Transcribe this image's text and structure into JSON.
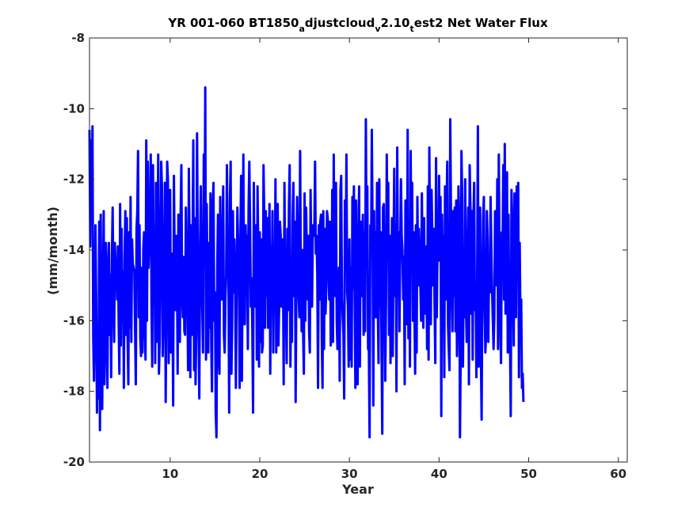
{
  "chart_data": {
    "type": "line",
    "title_parts": {
      "prefix": "YR 001-060 BT1850",
      "sub1": "a",
      "mid1": "djustcloud",
      "sub2": "v",
      "mid2": "2.10",
      "sub3": "t",
      "suffix": "est2 Net Water Flux"
    },
    "xlabel": "Year",
    "ylabel": "(mm/month)",
    "xlim": [
      1,
      61
    ],
    "ylim": [
      -20,
      -8
    ],
    "xticks": [
      10,
      20,
      30,
      40,
      50,
      60
    ],
    "yticks": [
      -20,
      -18,
      -16,
      -14,
      -12,
      -10,
      -8
    ],
    "grid": false,
    "line_color": "#0000ff",
    "series": [
      {
        "x_start": 1,
        "x_step": 0.0833333,
        "values": [
          -10.6,
          -13.9,
          -10.9,
          -12.6,
          -10.5,
          -16.5,
          -17.7,
          -15.8,
          -13.3,
          -15.5,
          -18.6,
          -16.2,
          -18.2,
          -13.2,
          -19.1,
          -13.0,
          -16.9,
          -18.5,
          -15.2,
          -12.9,
          -17.8,
          -16.7,
          -13.8,
          -15.0,
          -17.9,
          -14.8,
          -13.8,
          -16.4,
          -14.7,
          -17.6,
          -14.2,
          -12.8,
          -15.2,
          -16.6,
          -13.8,
          -14.6,
          -14.3,
          -15.4,
          -13.9,
          -15.9,
          -17.5,
          -12.7,
          -16.7,
          -13.4,
          -16.0,
          -14.6,
          -17.9,
          -14.2,
          -12.9,
          -16.4,
          -13.1,
          -16.4,
          -17.8,
          -13.5,
          -16.2,
          -12.5,
          -16.6,
          -13.7,
          -14.4,
          -14.5,
          -14.6,
          -16.2,
          -17.8,
          -13.4,
          -12.9,
          -11.2,
          -15.9,
          -13.3,
          -16.5,
          -17.0,
          -14.5,
          -16.9,
          -14.0,
          -13.5,
          -16.1,
          -17.1,
          -10.9,
          -16.0,
          -11.5,
          -14.5,
          -13.7,
          -13.0,
          -11.3,
          -15.6,
          -17.3,
          -11.6,
          -15.1,
          -13.6,
          -17.2,
          -12.1,
          -16.6,
          -14.6,
          -11.3,
          -17.5,
          -16.6,
          -14.0,
          -11.5,
          -12.2,
          -17.0,
          -15.9,
          -14.2,
          -12.1,
          -18.3,
          -15.1,
          -11.5,
          -12.0,
          -17.2,
          -14.7,
          -12.3,
          -16.9,
          -14.1,
          -14.8,
          -18.4,
          -11.9,
          -14.2,
          -15.7,
          -13.6,
          -14.0,
          -17.5,
          -13.0,
          -16.5,
          -16.6,
          -13.0,
          -11.6,
          -15.3,
          -15.9,
          -14.2,
          -16.3,
          -16.4,
          -12.8,
          -14.2,
          -15.0,
          -17.4,
          -11.7,
          -13.9,
          -17.6,
          -13.3,
          -16.4,
          -13.8,
          -10.9,
          -17.4,
          -13.1,
          -17.8,
          -16.2,
          -10.7,
          -13.9,
          -16.0,
          -18.2,
          -14.3,
          -12.2,
          -14.6,
          -15.7,
          -16.9,
          -11.3,
          -14.4,
          -9.4,
          -17.1,
          -12.7,
          -15.4,
          -16.9,
          -13.8,
          -16.2,
          -12.4,
          -16.6,
          -18.0,
          -12.8,
          -12.1,
          -16.0,
          -15.2,
          -18.6,
          -19.3,
          -14.6,
          -13.0,
          -16.9,
          -17.5,
          -12.5,
          -15.3,
          -15.4,
          -13.9,
          -12.2,
          -16.4,
          -16.9,
          -15.4,
          -14.7,
          -11.6,
          -14.4,
          -14.4,
          -18.6,
          -12.6,
          -11.5,
          -17.5,
          -16.2,
          -12.9,
          -15.2,
          -13.7,
          -15.1,
          -17.9,
          -15.3,
          -12.8,
          -13.8,
          -14.2,
          -17.9,
          -13.8,
          -11.9,
          -17.7,
          -14.5,
          -11.3,
          -16.1,
          -16.1,
          -13.3,
          -14.4,
          -13.6,
          -16.8,
          -12.8,
          -11.5,
          -13.3,
          -15.6,
          -14.8,
          -16.2,
          -18.6,
          -12.1,
          -15.6,
          -15.5,
          -13.3,
          -17.1,
          -12.2,
          -14.1,
          -17.3,
          -13.5,
          -16.6,
          -13.7,
          -16.9,
          -16.7,
          -11.6,
          -13.1,
          -16.2,
          -12.9,
          -15.3,
          -13.1,
          -16.2,
          -14.3,
          -12.7,
          -17.5,
          -13.9,
          -15.2,
          -12.9,
          -16.9,
          -14.7,
          -15.4,
          -12.0,
          -16.9,
          -15.1,
          -12.7,
          -16.7,
          -15.5,
          -13.2,
          -13.6,
          -15.6,
          -13.7,
          -14.3,
          -17.8,
          -12.1,
          -15.0,
          -15.6,
          -17.2,
          -13.4,
          -15.7,
          -12.8,
          -11.6,
          -17.3,
          -15.2,
          -16.6,
          -13.1,
          -12.1,
          -15.3,
          -13.2,
          -18.3,
          -14.9,
          -12.5,
          -13.9,
          -15.3,
          -15.9,
          -11.2,
          -14.7,
          -16.3,
          -14.0,
          -16.3,
          -17.5,
          -12.4,
          -16.0,
          -12.8,
          -14.1,
          -15.4,
          -13.6,
          -16.3,
          -16.9,
          -12.3,
          -14.4,
          -15.6,
          -13.3,
          -13.5,
          -13.6,
          -11.5,
          -14.1,
          -13.6,
          -14.7,
          -17.9,
          -13.3,
          -15.4,
          -13.2,
          -13.0,
          -16.5,
          -17.9,
          -12.9,
          -16.8,
          -13.4,
          -15.8,
          -15.1,
          -12.9,
          -13.1,
          -14.6,
          -15.4,
          -13.2,
          -16.7,
          -16.3,
          -12.3,
          -16.6,
          -11.3,
          -15.3,
          -13.6,
          -12.1,
          -16.0,
          -16.8,
          -15.0,
          -14.5,
          -17.7,
          -12.3,
          -11.9,
          -15.4,
          -15.9,
          -16.4,
          -18.2,
          -12.6,
          -14.5,
          -11.3,
          -15.2,
          -15.6,
          -17.3,
          -13.7,
          -17.1,
          -14.5,
          -17.3,
          -12.5,
          -15.1,
          -12.2,
          -15.3,
          -17.9,
          -12.6,
          -15.2,
          -17.8,
          -14.3,
          -12.2,
          -17.3,
          -13.2,
          -14.3,
          -15.3,
          -13.0,
          -16.4,
          -13.5,
          -16.3,
          -10.3,
          -14.4,
          -12.2,
          -16.8,
          -16.7,
          -19.3,
          -13.3,
          -14.1,
          -10.6,
          -13.6,
          -18.4,
          -12.9,
          -15.9,
          -13.5,
          -15.9,
          -12.1,
          -15.6,
          -17.2,
          -12.0,
          -15.6,
          -13.5,
          -16.7,
          -19.2,
          -12.8,
          -12.7,
          -14.8,
          -17.7,
          -15.5,
          -11.3,
          -14.1,
          -12.1,
          -16.4,
          -13.6,
          -17.2,
          -15.4,
          -13.1,
          -17.0,
          -14.3,
          -11.7,
          -15.3,
          -13.3,
          -18.0,
          -11.1,
          -14.6,
          -13.5,
          -16.3,
          -14.1,
          -12.0,
          -13.6,
          -14.0,
          -15.4,
          -14.2,
          -17.8,
          -12.6,
          -15.2,
          -16.1,
          -10.6,
          -16.5,
          -13.2,
          -17.3,
          -11.2,
          -14.6,
          -12.1,
          -16.0,
          -13.5,
          -15.6,
          -17.5,
          -13.3,
          -16.9,
          -12.5,
          -15.0,
          -13.4,
          -14.1,
          -15.0,
          -16.0,
          -12.4,
          -14.6,
          -16.2,
          -13.1,
          -15.8,
          -15.7,
          -13.9,
          -16.8,
          -12.2,
          -17.1,
          -11.1,
          -13.9,
          -16.1,
          -12.3,
          -13.6,
          -15.0,
          -13.4,
          -15.5,
          -17.2,
          -11.4,
          -15.9,
          -13.9,
          -14.3,
          -11.9,
          -14.3,
          -12.5,
          -18.7,
          -13.0,
          -14.7,
          -13.6,
          -17.6,
          -12.2,
          -15.4,
          -13.0,
          -11.5,
          -16.1,
          -16.8,
          -17.4,
          -10.3,
          -13.0,
          -15.0,
          -16.3,
          -12.9,
          -15.3,
          -12.8,
          -16.3,
          -12.6,
          -17.0,
          -15.6,
          -12.2,
          -13.3,
          -19.3,
          -16.9,
          -11.2,
          -12.5,
          -17.3,
          -14.6,
          -15.9,
          -12.0,
          -15.5,
          -16.6,
          -14.6,
          -12.8,
          -17.8,
          -11.6,
          -12.8,
          -15.8,
          -12.9,
          -17.1,
          -13.2,
          -12.1,
          -15.7,
          -15.2,
          -17.6,
          -14.9,
          -10.5,
          -17.3,
          -14.5,
          -12.8,
          -16.8,
          -18.8,
          -15.1,
          -13.1,
          -12.5,
          -15.6,
          -16.9,
          -16.4,
          -12.9,
          -13.7,
          -16.6,
          -14.3,
          -15.2,
          -12.5,
          -13.9,
          -15.1,
          -16.0,
          -16.8,
          -15.9,
          -12.9,
          -13.6,
          -15.0,
          -12.0,
          -16.8,
          -11.3,
          -14.5,
          -16.0,
          -17.2,
          -13.5,
          -14.1,
          -11.6,
          -15.4,
          -11.0,
          -15.8,
          -14.1,
          -11.8,
          -16.9,
          -13.0,
          -16.1,
          -16.5,
          -18.7,
          -12.3,
          -13.2,
          -14.9,
          -16.7,
          -12.4,
          -14.0,
          -15.9,
          -12.2,
          -14.5,
          -12.1,
          -17.6,
          -13.8,
          -16.1,
          -15.4,
          -17.9,
          -17.5,
          -18.3
        ]
      }
    ]
  }
}
